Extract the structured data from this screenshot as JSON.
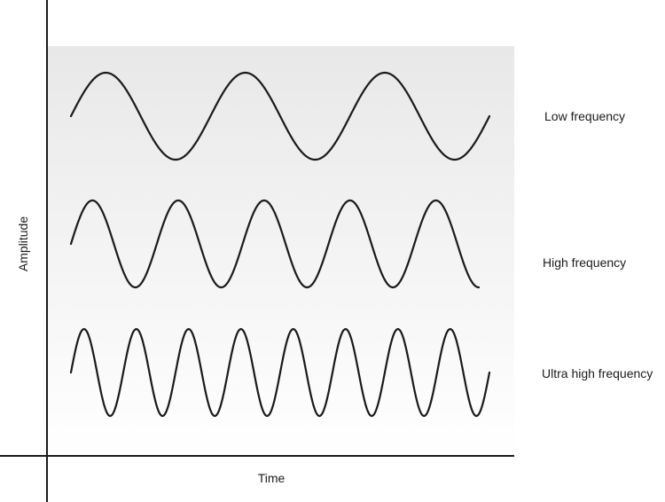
{
  "diagram": {
    "axes": {
      "x_label": "Time",
      "y_label": "Amplitude"
    },
    "waves": [
      {
        "label": "Low frequency",
        "cycles": 3
      },
      {
        "label": "High frequency",
        "cycles": 4.75
      },
      {
        "label": "Ultra high frequency",
        "cycles": 8
      }
    ],
    "colors": {
      "wave": "#1a1a1a",
      "panel_top": "#e8e8e8",
      "panel_bottom": "#ffffff"
    }
  }
}
